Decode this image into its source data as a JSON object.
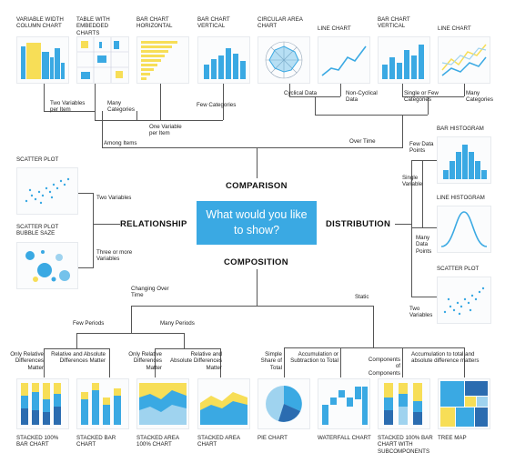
{
  "center_question": "What would you like to show?",
  "categories": {
    "comparison": "COMPARISON",
    "relationship": "RELATIONSHIP",
    "distribution": "DISTRIBUTION",
    "composition": "COMPOSITION"
  },
  "charts": {
    "variable_width_column": "VARIABLE WIDTH COLUMN CHART",
    "table_embedded": "TABLE WITH EMBEDDED CHARTS",
    "bar_horizontal": "BAR CHART HORIZONTAL",
    "bar_vertical": "BAR CHART VERTICAL",
    "circular_area": "CIRCULAR AREA CHART",
    "line_chart_1": "LINE CHART",
    "bar_vertical_2": "BAR CHART VERTICAL",
    "line_chart_2": "LINE CHART",
    "bar_histogram": "BAR HISTOGRAM",
    "line_histogram": "LINE HISTOGRAM",
    "scatter_plot_dist": "SCATTER PLOT",
    "scatter_plot_rel": "SCATTER PLOT",
    "bubble_chart": "SCATTER PLOT BUBBLE SAZE",
    "stacked_100_bar": "STACKED 100% BAR CHART",
    "stacked_bar": "STACKED BAR CHART",
    "stacked_area_100": "STACKED AREA 100% CHART",
    "stacked_area": "STACKED AREA CHART",
    "pie": "PIE CHART",
    "waterfall": "WATERFALL CHART",
    "stacked_100_sub": "STACKED 100% BAR CHART WITH SUBCOMPONENTS",
    "tree_map": "TREE MAP"
  },
  "notes": {
    "two_var_per_item": "Two Variables per Item",
    "many_categories": "Many Categories",
    "one_var_per_item": "One Variable per Item",
    "few_categories": "Few Categories",
    "among_items": "Among Items",
    "cyclical": "Cyclical Data",
    "non_cyclical": "Non-Cyclical Data",
    "single_or_few": "Single or Few Categories",
    "many_categories_2": "Many Categories",
    "over_time": "Over Time",
    "two_variables_rel": "Two Variables",
    "three_or_more": "Three or more Variables",
    "few_data_points": "Few Data Points",
    "single_variable": "Single Variable",
    "many_data_points": "Many Data Points",
    "two_variables_dist": "Two Variables",
    "changing_over_time": "Changing Over Time",
    "static": "Static",
    "few_periods": "Few Periods",
    "many_periods": "Many Periods",
    "only_relative_1": "Only Relative Differences Matter",
    "rel_abs_1": "Relative and Absolute Differences Matter",
    "only_relative_2": "Only Relative Differences Matter",
    "rel_abs_2": "Relative and Absolute Differences Matter",
    "simple_share": "Simple Share of Total",
    "accumulation": "Accumulation or Subtraction to Total",
    "components": "Components of Components",
    "accum_total": "Accumulation to total and absolute difference matters"
  },
  "colors": {
    "blue": "#3aa9e3",
    "yellow": "#f7de57",
    "navy": "#2b6cb0",
    "line": "#555555"
  }
}
